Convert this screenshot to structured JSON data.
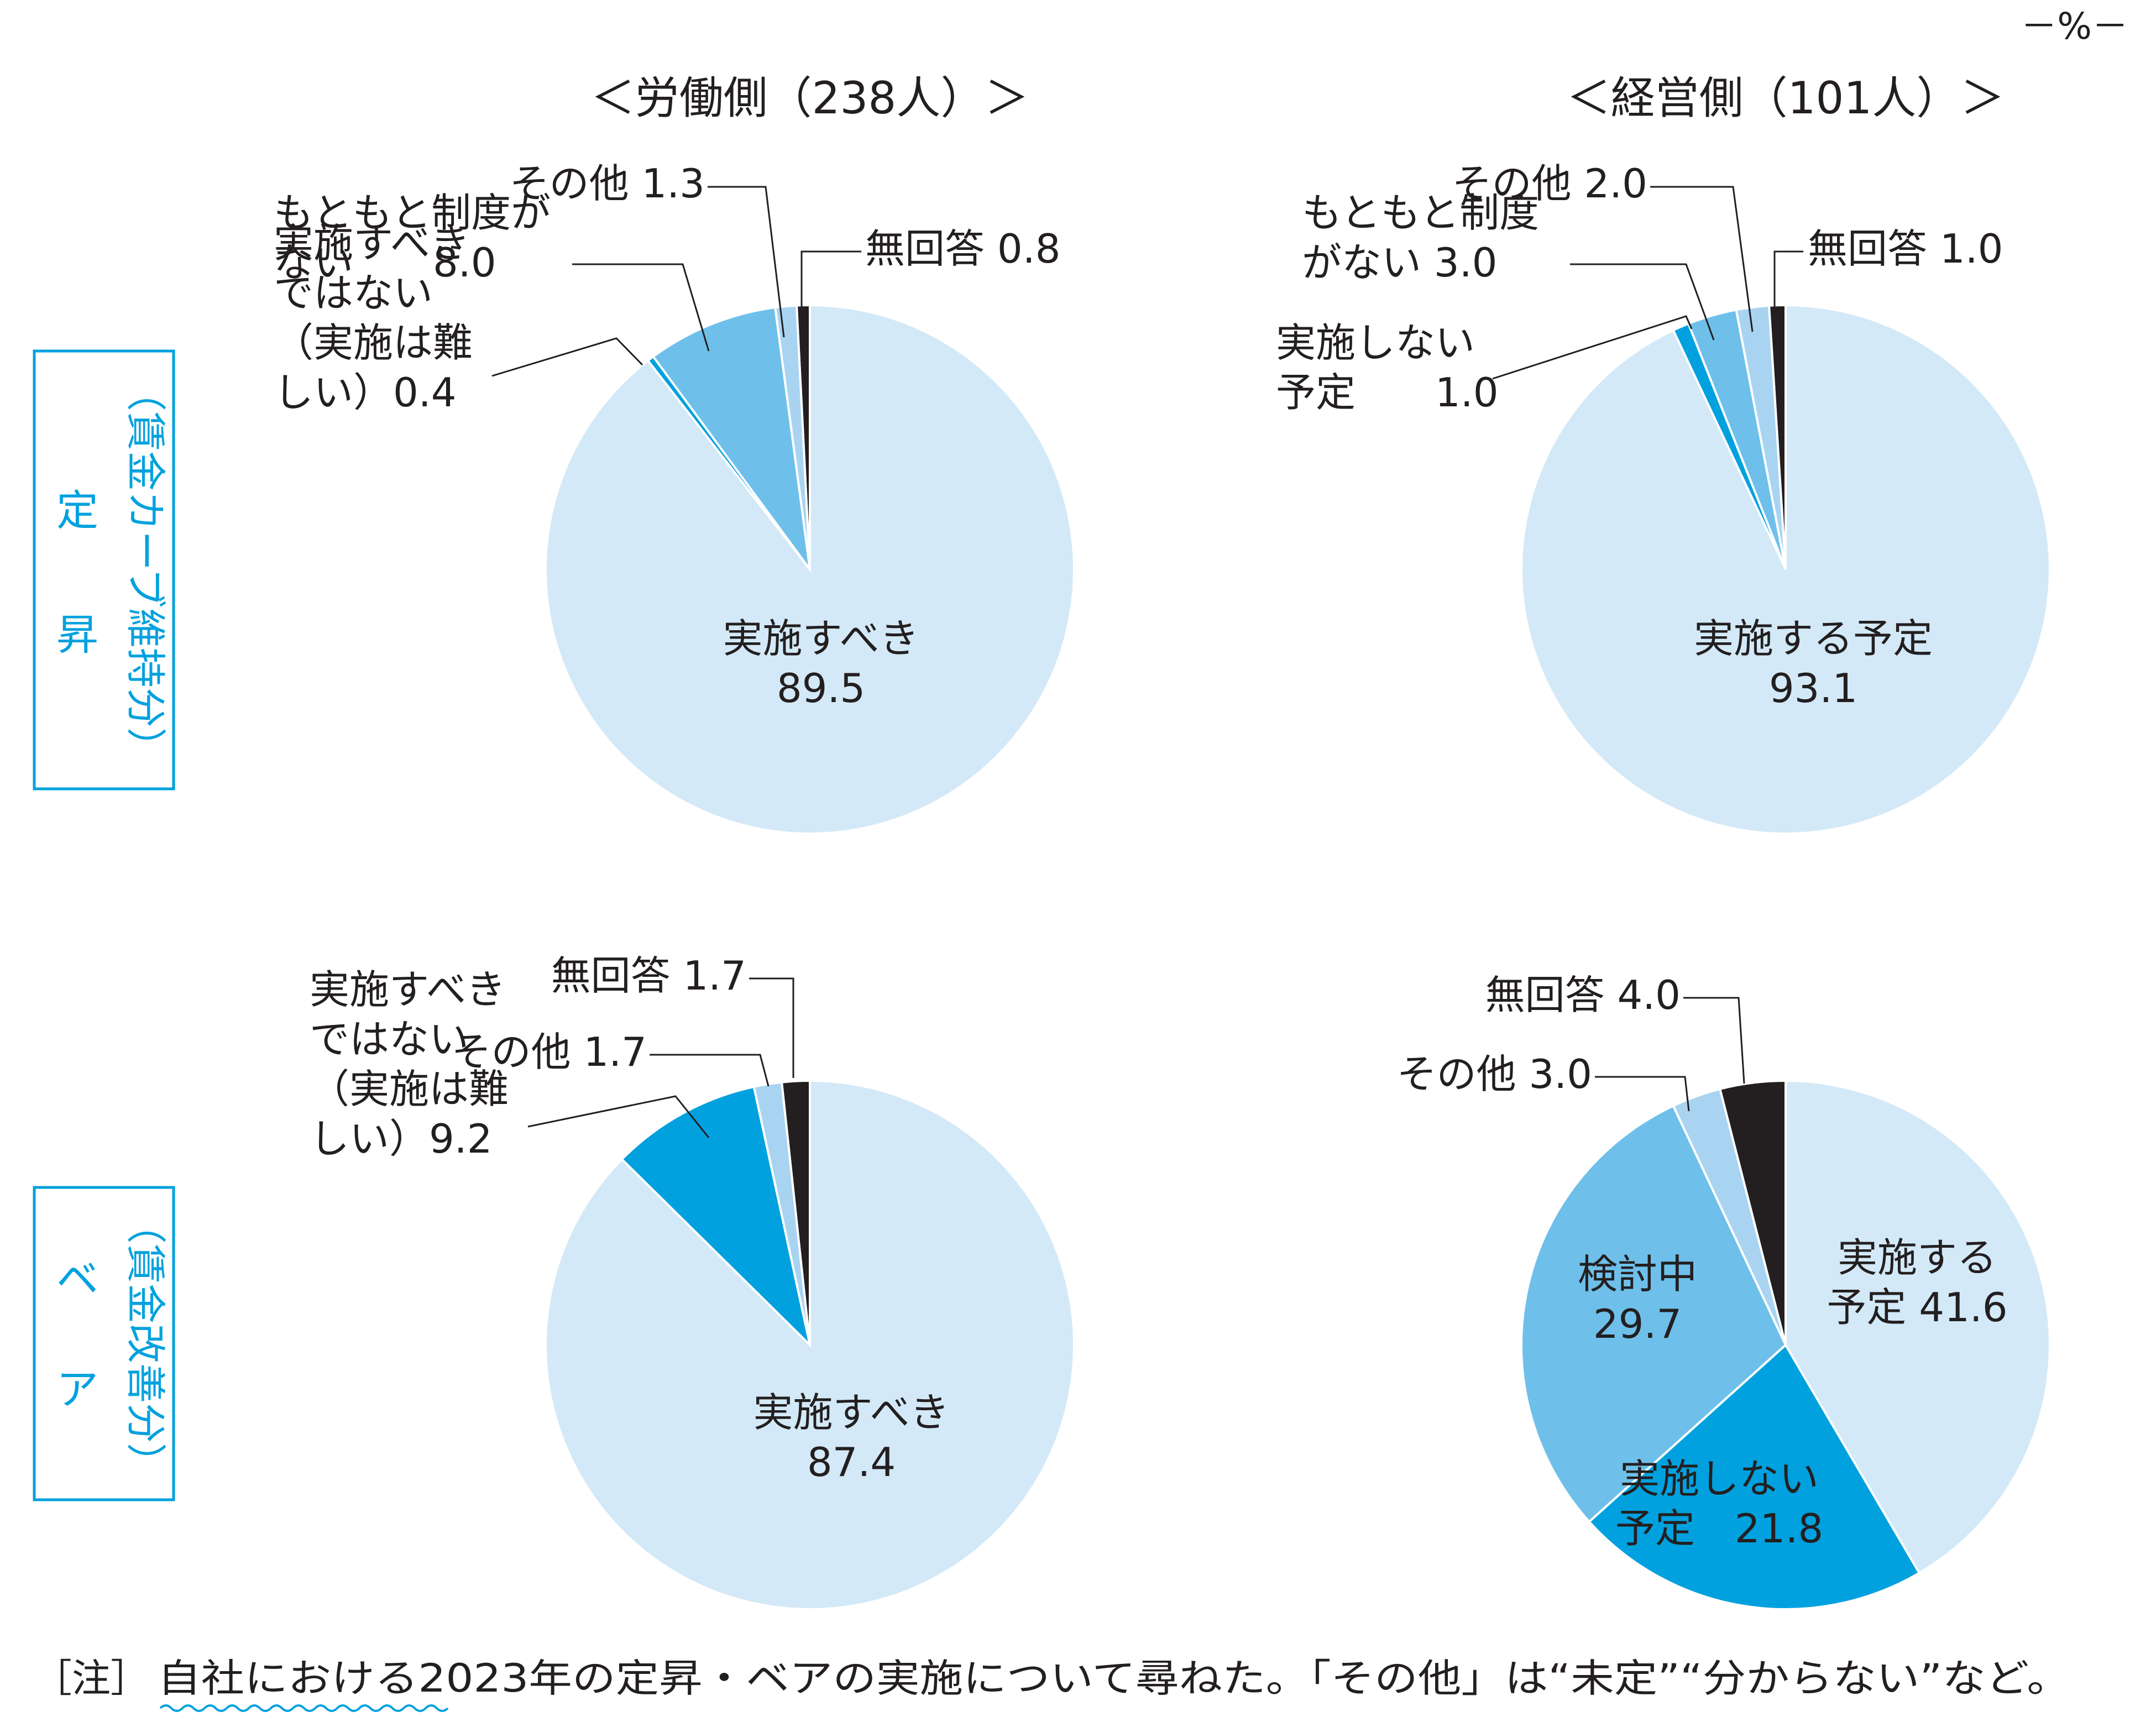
{
  "unit": "－%－",
  "headers": {
    "labor": "＜労働側（238人）＞",
    "management": "＜経営側（101人）＞"
  },
  "row_labels": {
    "teisho": {
      "main": [
        "定",
        "昇"
      ],
      "sub": "（賃金カーブ維持分）"
    },
    "bea": {
      "main": [
        "ベ",
        "ア"
      ],
      "sub": "（賃金改善分）"
    }
  },
  "colors": {
    "very_light_blue": "#d3e9f7",
    "light_blue": "#a9d4f1",
    "medium_blue": "#6ec0ea",
    "blue": "#00a1de",
    "black": "#231f20",
    "accent_cyan": "#00a1de"
  },
  "note": {
    "prefix": "［注］",
    "text": "自社における2023年の定昇・ベアの実施について尋ねた。「その他」は“未定”“分からない”など。"
  },
  "chart_data": [
    {
      "type": "pie",
      "title": "＜労働側（238人）＞",
      "row": "定昇",
      "slices": [
        {
          "label": "実施すべき",
          "value": 89.5,
          "color": "#d3e9f7",
          "lines": [
            "実施すべき",
            "89.5"
          ]
        },
        {
          "label": "実施すべきではない（実施は難しい）",
          "value": 0.4,
          "color": "#00a1de",
          "lines": [
            "実施すべき",
            "ではない",
            "（実施は難",
            "しい）0.4"
          ]
        },
        {
          "label": "もともと制度がない",
          "value": 8.0,
          "color": "#6ec0ea",
          "lines": [
            "もともと制度が",
            "ない　　8.0"
          ]
        },
        {
          "label": "その他",
          "value": 1.3,
          "color": "#a9d4f1",
          "lines": [
            "その他  1.3"
          ]
        },
        {
          "label": "無回答",
          "value": 0.8,
          "color": "#231f20",
          "lines": [
            "無回答  0.8"
          ]
        }
      ]
    },
    {
      "type": "pie",
      "title": "＜経営側（101人）＞",
      "row": "定昇",
      "slices": [
        {
          "label": "実施する予定",
          "value": 93.1,
          "color": "#d3e9f7",
          "lines": [
            "実施する予定",
            "93.1"
          ]
        },
        {
          "label": "実施しない予定",
          "value": 1.0,
          "color": "#00a1de",
          "lines": [
            "実施しない",
            "予定　　1.0"
          ]
        },
        {
          "label": "もともと制度がない",
          "value": 3.0,
          "color": "#6ec0ea",
          "lines": [
            "もともと制度",
            "がない  3.0"
          ]
        },
        {
          "label": "その他",
          "value": 2.0,
          "color": "#a9d4f1",
          "lines": [
            "その他  2.0"
          ]
        },
        {
          "label": "無回答",
          "value": 1.0,
          "color": "#231f20",
          "lines": [
            "無回答  1.0"
          ]
        }
      ]
    },
    {
      "type": "pie",
      "title": "＜労働側（238人）＞",
      "row": "ベア",
      "slices": [
        {
          "label": "実施すべき",
          "value": 87.4,
          "color": "#d3e9f7",
          "lines": [
            "実施すべき",
            "87.4"
          ]
        },
        {
          "label": "実施すべきではない（実施は難しい）",
          "value": 9.2,
          "color": "#00a1de",
          "lines": [
            "実施すべき",
            "ではない",
            "（実施は難",
            "しい）9.2"
          ]
        },
        {
          "label": "その他",
          "value": 1.7,
          "color": "#a9d4f1",
          "lines": [
            "その他  1.7"
          ]
        },
        {
          "label": "無回答",
          "value": 1.7,
          "color": "#231f20",
          "lines": [
            "無回答  1.7"
          ]
        }
      ]
    },
    {
      "type": "pie",
      "title": "＜経営側（101人）＞",
      "row": "ベア",
      "slices": [
        {
          "label": "実施する予定",
          "value": 41.6,
          "color": "#d3e9f7",
          "lines": [
            "実施する",
            "予定  41.6"
          ]
        },
        {
          "label": "実施しない予定",
          "value": 21.8,
          "color": "#00a1de",
          "lines": [
            "実施しない",
            "予定　21.8"
          ]
        },
        {
          "label": "検討中",
          "value": 29.7,
          "color": "#6ec0ea",
          "lines": [
            "検討中",
            "29.7"
          ]
        },
        {
          "label": "その他",
          "value": 3.0,
          "color": "#a9d4f1",
          "lines": [
            "その他  3.0"
          ]
        },
        {
          "label": "無回答",
          "value": 4.0,
          "color": "#231f20",
          "lines": [
            "無回答  4.0"
          ]
        }
      ]
    }
  ]
}
